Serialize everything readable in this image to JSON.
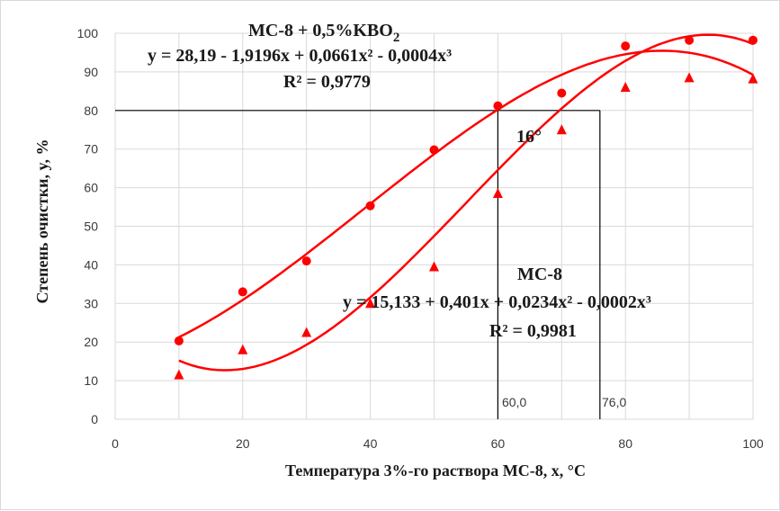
{
  "chart_data": {
    "type": "scatter",
    "xlabel": "Температура  3%-го раствора МС-8, x, °C",
    "ylabel": "Степень очистки,  y, %",
    "xlim": [
      0,
      100
    ],
    "ylim": [
      0,
      100
    ],
    "x_ticks": [
      "0",
      "20",
      "40",
      "60",
      "80",
      "100"
    ],
    "y_ticks": [
      "0",
      "10",
      "20",
      "30",
      "40",
      "50",
      "60",
      "70",
      "80",
      "90",
      "100"
    ],
    "grid": true,
    "series": [
      {
        "name": "МС-8 + 0,5%KBO2",
        "marker": "circle",
        "color": "#ff0000",
        "x": [
          10,
          20,
          30,
          40,
          50,
          60,
          70,
          80,
          90,
          100
        ],
        "y": [
          20.3,
          33,
          41,
          55.3,
          69.8,
          81.2,
          84.5,
          96.7,
          98.2,
          98.2
        ],
        "trend_coeffs": [
          28.19,
          -1.9196,
          0.0661,
          -0.0004
        ],
        "trend_x_range": [
          10,
          100
        ]
      },
      {
        "name": "МС-8",
        "marker": "triangle",
        "color": "#ff0000",
        "x": [
          10,
          20,
          30,
          40,
          50,
          60,
          70,
          80,
          90,
          100
        ],
        "y": [
          11.5,
          18,
          22.5,
          30,
          39.5,
          58.5,
          75,
          86,
          88.5,
          88.2
        ],
        "trend_coeffs": [
          15.133,
          0.401,
          0.0234,
          -0.0002
        ],
        "trend_x_range": [
          10,
          100
        ]
      }
    ],
    "reference_lines": [
      {
        "type": "h",
        "y": 80,
        "x_from": 0,
        "x_to": 76
      },
      {
        "type": "v",
        "x": 60,
        "y_from": 0,
        "y_to": 80
      },
      {
        "type": "v",
        "x": 76,
        "y_from": 0,
        "y_to": 80
      }
    ],
    "annotations": {
      "series1_label": "МС-8 + 0,5%KBO",
      "series1_label_sub": "2",
      "series1_eq": "y = 28,19 - 1,9196x + 0,0661x² - 0,0004x³",
      "series1_r2": "R² = 0,9779",
      "series2_label": "МС-8",
      "series2_eq": "y = 15,133 + 0,401x + 0,0234x² - 0,0002x³",
      "series2_r2": "R² = 0,9981",
      "angle_label": "16°",
      "vline1_label": "60,0",
      "vline2_label": "76,0"
    }
  }
}
